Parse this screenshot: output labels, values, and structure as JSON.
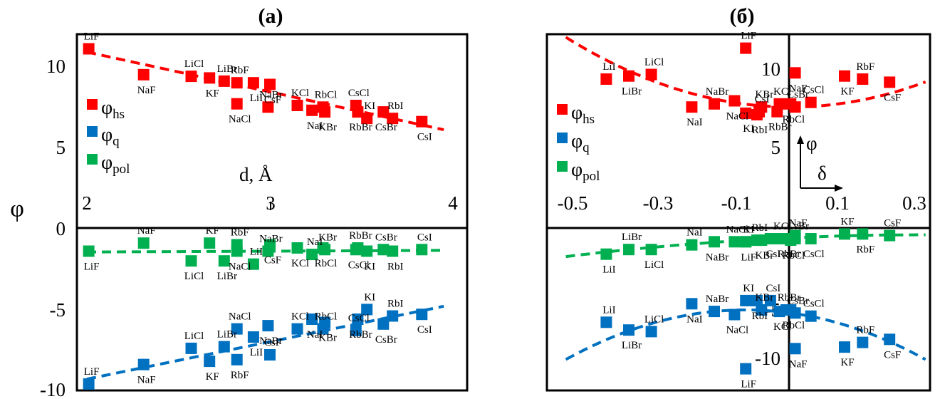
{
  "ylabel": "φ",
  "colors": {
    "hs": "#ff0000",
    "q": "#0070c0",
    "pol": "#00b050"
  },
  "legend": [
    {
      "symbol": "φ",
      "sub": "hs",
      "color": "#ff0000"
    },
    {
      "symbol": "φ",
      "sub": "q",
      "color": "#0070c0"
    },
    {
      "symbol": "φ",
      "sub": "pol",
      "color": "#00b050"
    }
  ],
  "chart_data": [
    {
      "type": "scatter",
      "title": "(a)",
      "xlabel": "d, Å",
      "ylabel": "φ",
      "xlim": [
        2,
        4
      ],
      "ylim": [
        -10,
        12
      ],
      "xticks": [
        "2",
        "3",
        "4"
      ],
      "yticks": [
        "10",
        "5",
        "0",
        "-5",
        "-10"
      ],
      "series": [
        {
          "name": "φhs",
          "color": "#ff0000",
          "trend": [
            [
              2.0,
              10.9
            ],
            [
              3.95,
              6.1
            ]
          ],
          "points": [
            [
              "LiF",
              2.01,
              11.1
            ],
            [
              "NaF",
              2.31,
              9.5
            ],
            [
              "LiCl",
              2.57,
              9.4
            ],
            [
              "KF",
              2.67,
              9.3
            ],
            [
              "LiBr",
              2.75,
              9.1
            ],
            [
              "NaCl",
              2.82,
              7.7
            ],
            [
              "RbF",
              2.82,
              9.0
            ],
            [
              "LiI",
              2.91,
              9.0
            ],
            [
              "NaBr",
              2.99,
              7.5
            ],
            [
              "CsF",
              3.0,
              8.9
            ],
            [
              "KCl",
              3.15,
              7.6
            ],
            [
              "NaI",
              3.23,
              7.3
            ],
            [
              "RbCl",
              3.29,
              7.5
            ],
            [
              "KBr",
              3.3,
              7.2
            ],
            [
              "CsCl",
              3.47,
              7.6
            ],
            [
              "RbBr",
              3.48,
              7.2
            ],
            [
              "KI",
              3.53,
              6.8
            ],
            [
              "CsBr",
              3.62,
              7.2
            ],
            [
              "RbI",
              3.67,
              6.8
            ],
            [
              "CsI",
              3.83,
              6.6
            ]
          ]
        },
        {
          "name": "φq",
          "color": "#0070c0",
          "trend": [
            [
              2.0,
              -9.3
            ],
            [
              3.95,
              -4.8
            ]
          ],
          "points": [
            [
              "LiF",
              2.01,
              -9.6
            ],
            [
              "NaF",
              2.31,
              -8.4
            ],
            [
              "LiCl",
              2.57,
              -7.4
            ],
            [
              "KF",
              2.67,
              -8.2
            ],
            [
              "LiBr",
              2.75,
              -7.3
            ],
            [
              "RbF",
              2.82,
              -8.1
            ],
            [
              "NaCl",
              2.82,
              -6.2
            ],
            [
              "LiI",
              2.91,
              -6.7
            ],
            [
              "CsF",
              3.0,
              -7.8
            ],
            [
              "NaBr",
              2.99,
              -6.0
            ],
            [
              "KCl",
              3.15,
              -6.2
            ],
            [
              "NaI",
              3.23,
              -5.6
            ],
            [
              "RbCl",
              3.29,
              -6.2
            ],
            [
              "KBr",
              3.3,
              -5.8
            ],
            [
              "CsCl",
              3.47,
              -6.3
            ],
            [
              "RbBr",
              3.48,
              -5.6
            ],
            [
              "KI",
              3.53,
              -5.0
            ],
            [
              "CsBr",
              3.62,
              -5.9
            ],
            [
              "RbI",
              3.67,
              -5.4
            ],
            [
              "CsI",
              3.83,
              -5.3
            ]
          ]
        },
        {
          "name": "φpol",
          "color": "#00b050",
          "trend": [
            [
              2.0,
              -1.45
            ],
            [
              3.95,
              -1.35
            ]
          ],
          "points": [
            [
              "LiF",
              2.01,
              -1.4
            ],
            [
              "NaF",
              2.31,
              -0.9
            ],
            [
              "LiCl",
              2.57,
              -2.0
            ],
            [
              "KF",
              2.67,
              -0.9
            ],
            [
              "LiBr",
              2.75,
              -2.0
            ],
            [
              "RbF",
              2.82,
              -1.0
            ],
            [
              "NaCl",
              2.82,
              -1.4
            ],
            [
              "LiI",
              2.91,
              -2.2
            ],
            [
              "CsF",
              3.0,
              -1.0
            ],
            [
              "NaBr",
              2.99,
              -1.4
            ],
            [
              "KCl",
              3.15,
              -1.2
            ],
            [
              "NaI",
              3.23,
              -1.6
            ],
            [
              "RbCl",
              3.29,
              -1.2
            ],
            [
              "KBr",
              3.3,
              -1.3
            ],
            [
              "CsCl",
              3.47,
              -1.3
            ],
            [
              "RbBr",
              3.48,
              -1.2
            ],
            [
              "KI",
              3.53,
              -1.4
            ],
            [
              "CsBr",
              3.62,
              -1.3
            ],
            [
              "RbI",
              3.67,
              -1.4
            ],
            [
              "CsI",
              3.83,
              -1.3
            ]
          ]
        }
      ]
    },
    {
      "type": "scatter",
      "title": "(б)",
      "xlabel": "δ",
      "ylabel": "φ",
      "xlim": [
        -0.52,
        0.31
      ],
      "ylim": [
        -11,
        12
      ],
      "xticks": [
        "-0.5",
        "-0.3",
        "-0.1",
        "0.1",
        "0.3"
      ],
      "yticks": [
        "10",
        "5",
        "-5",
        "-10"
      ],
      "series": [
        {
          "name": "φhs",
          "color": "#ff0000",
          "trend_quadratic": {
            "a": 18.0,
            "h": 0.0,
            "k": 7.3
          },
          "points": [
            [
              "LiI",
              -0.41,
              9.1
            ],
            [
              "LiBr",
              -0.36,
              9.3
            ],
            [
              "LiCl",
              -0.31,
              9.4
            ],
            [
              "NaI",
              -0.22,
              7.3
            ],
            [
              "NaBr",
              -0.17,
              7.5
            ],
            [
              "NaCl",
              -0.125,
              7.7
            ],
            [
              "LiF",
              -0.1,
              11.1
            ],
            [
              "KI",
              -0.1,
              6.9
            ],
            [
              "KBr",
              -0.065,
              7.3
            ],
            [
              "RbI",
              -0.075,
              6.8
            ],
            [
              "CsI",
              -0.07,
              7.0
            ],
            [
              "RbBr",
              -0.03,
              7.0
            ],
            [
              "KCl",
              -0.025,
              7.5
            ],
            [
              "RbCl",
              0.0,
              7.5
            ],
            [
              "CsBr",
              0.01,
              7.3
            ],
            [
              "NaF",
              0.01,
              9.5
            ],
            [
              "CsCl",
              0.045,
              7.6
            ],
            [
              "KF",
              0.12,
              9.3
            ],
            [
              "RbF",
              0.16,
              9.1
            ],
            [
              "CsF",
              0.22,
              8.9
            ]
          ]
        },
        {
          "name": "φq",
          "color": "#0070c0",
          "trend_quadratic": {
            "a": -20.0,
            "h": -0.1,
            "k": -5.8
          },
          "points": [
            [
              "LiI",
              -0.41,
              -6.6
            ],
            [
              "LiBr",
              -0.36,
              -7.1
            ],
            [
              "LiCl",
              -0.31,
              -7.2
            ],
            [
              "NaI",
              -0.22,
              -5.4
            ],
            [
              "NaBr",
              -0.17,
              -5.9
            ],
            [
              "NaCl",
              -0.125,
              -6.1
            ],
            [
              "KI",
              -0.1,
              -5.2
            ],
            [
              "LiF",
              -0.1,
              -9.6
            ],
            [
              "KBr",
              -0.065,
              -5.8
            ],
            [
              "RbI",
              -0.075,
              -5.2
            ],
            [
              "CsI",
              -0.045,
              -5.2
            ],
            [
              "KCl",
              -0.025,
              -5.9
            ],
            [
              "RbBr",
              -0.01,
              -5.8
            ],
            [
              "RbCl",
              0.0,
              -5.8
            ],
            [
              "CsBr",
              0.01,
              -6.0
            ],
            [
              "NaF",
              0.01,
              -8.3
            ],
            [
              "CsCl",
              0.045,
              -6.2
            ],
            [
              "KF",
              0.12,
              -8.2
            ],
            [
              "RbF",
              0.16,
              -7.9
            ],
            [
              "CsF",
              0.22,
              -7.7
            ]
          ]
        },
        {
          "name": "φpol",
          "color": "#00b050",
          "trend_quadratic": {
            "a": -2.2,
            "h": 0.3,
            "k": -0.95
          },
          "points": [
            [
              "LiI",
              -0.41,
              -2.2
            ],
            [
              "LiBr",
              -0.36,
              -1.9
            ],
            [
              "LiCl",
              -0.31,
              -1.9
            ],
            [
              "NaI",
              -0.22,
              -1.6
            ],
            [
              "NaBr",
              -0.17,
              -1.4
            ],
            [
              "NaCl",
              -0.125,
              -1.4
            ],
            [
              "LiF",
              -0.1,
              -1.4
            ],
            [
              "KI",
              -0.1,
              -1.4
            ],
            [
              "KBr",
              -0.065,
              -1.3
            ],
            [
              "RbI",
              -0.075,
              -1.3
            ],
            [
              "CsI",
              -0.045,
              -1.2
            ],
            [
              "KCl",
              -0.025,
              -1.2
            ],
            [
              "RbBr",
              -0.01,
              -1.2
            ],
            [
              "NaF",
              0.01,
              -1.0
            ],
            [
              "RbCl",
              0.0,
              -1.3
            ],
            [
              "CsBr",
              0.01,
              -1.2
            ],
            [
              "CsCl",
              0.045,
              -1.2
            ],
            [
              "KF",
              0.12,
              -0.9
            ],
            [
              "RbF",
              0.16,
              -0.9
            ],
            [
              "CsF",
              0.22,
              -1.0
            ]
          ]
        }
      ]
    }
  ]
}
